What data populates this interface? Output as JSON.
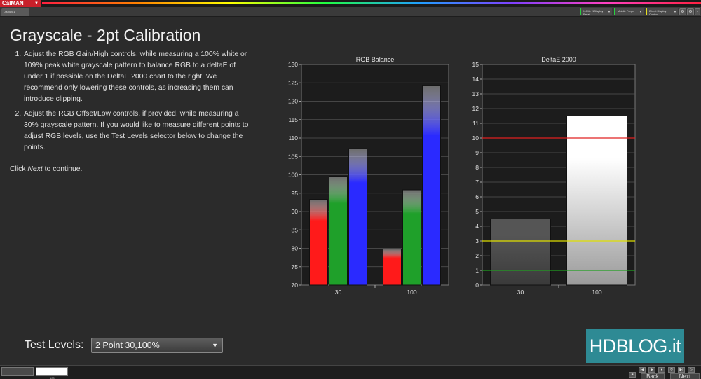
{
  "app": {
    "logo_text": "CalMAN",
    "logo_arrow": "▼",
    "tab_label": "Display 1"
  },
  "toolbar": {
    "devices": [
      {
        "label": "X-Rite i1Display Retail",
        "sublabel": "LCD (LED)",
        "status": "green"
      },
      {
        "label": "Mobile Forge",
        "status": "green"
      },
      {
        "label": "Direct Display Control",
        "status": "yellow"
      }
    ],
    "buttons": [
      {
        "name": "settings-icon",
        "glyph": "⚙"
      },
      {
        "name": "options-icon",
        "glyph": "⚙"
      },
      {
        "name": "info-icon",
        "glyph": "▫"
      }
    ]
  },
  "page": {
    "title": "Grayscale - 2pt Calibration",
    "instructions": [
      "Adjust the RGB Gain/High controls, while measuring a 100% white  or 109% peak white grayscale pattern to balance RGB to a deltaE of under 1 if possible on the DeltaE 2000 chart to the right. We recommend only lowering these controls, as increasing them can introduce clipping.",
      "Adjust the RGB Offset/Low controls, if provided, while measuring a 30%  grayscale pattern. If you would like to measure different points to adjust RGB levels, use the Test Levels selector below to change the points."
    ],
    "click_prefix": "Click ",
    "click_emph": "Next",
    "click_suffix": " to continue."
  },
  "test_levels": {
    "label": "Test Levels:",
    "value": "2 Point 30,100%",
    "chevron": "▼"
  },
  "watermark": {
    "text": "HDBLOG.it"
  },
  "bottom": {
    "thumb_label": "100",
    "back_label": "Back",
    "next_label": "Next"
  },
  "chart_data": [
    {
      "type": "bar",
      "title": "RGB Balance",
      "categories": [
        "30",
        "100"
      ],
      "series": [
        {
          "name": "Red",
          "color": "#ff1a1a",
          "values": [
            93.3,
            79.8
          ]
        },
        {
          "name": "Green",
          "color": "#1fa02a",
          "values": [
            99.6,
            95.9
          ]
        },
        {
          "name": "Blue",
          "color": "#2a2aff",
          "values": [
            107.1,
            124.2
          ]
        }
      ],
      "ylim": [
        70,
        130
      ],
      "yticks": [
        70,
        75,
        80,
        85,
        90,
        95,
        100,
        105,
        110,
        115,
        120,
        125,
        130
      ],
      "grid": true
    },
    {
      "type": "bar",
      "title": "DeltaE 2000",
      "categories": [
        "30",
        "100"
      ],
      "series": [
        {
          "values": [
            4.5,
            11.5
          ],
          "colors": [
            "#555555",
            "#ffffff"
          ]
        }
      ],
      "ylim": [
        0,
        15
      ],
      "yticks": [
        0,
        1,
        2,
        3,
        4,
        5,
        6,
        7,
        8,
        9,
        10,
        11,
        12,
        13,
        14,
        15
      ],
      "reference_lines": [
        {
          "value": 10,
          "color": "#e02020"
        },
        {
          "value": 3,
          "color": "#e0e000"
        },
        {
          "value": 1,
          "color": "#20a020"
        }
      ],
      "grid": true
    }
  ]
}
